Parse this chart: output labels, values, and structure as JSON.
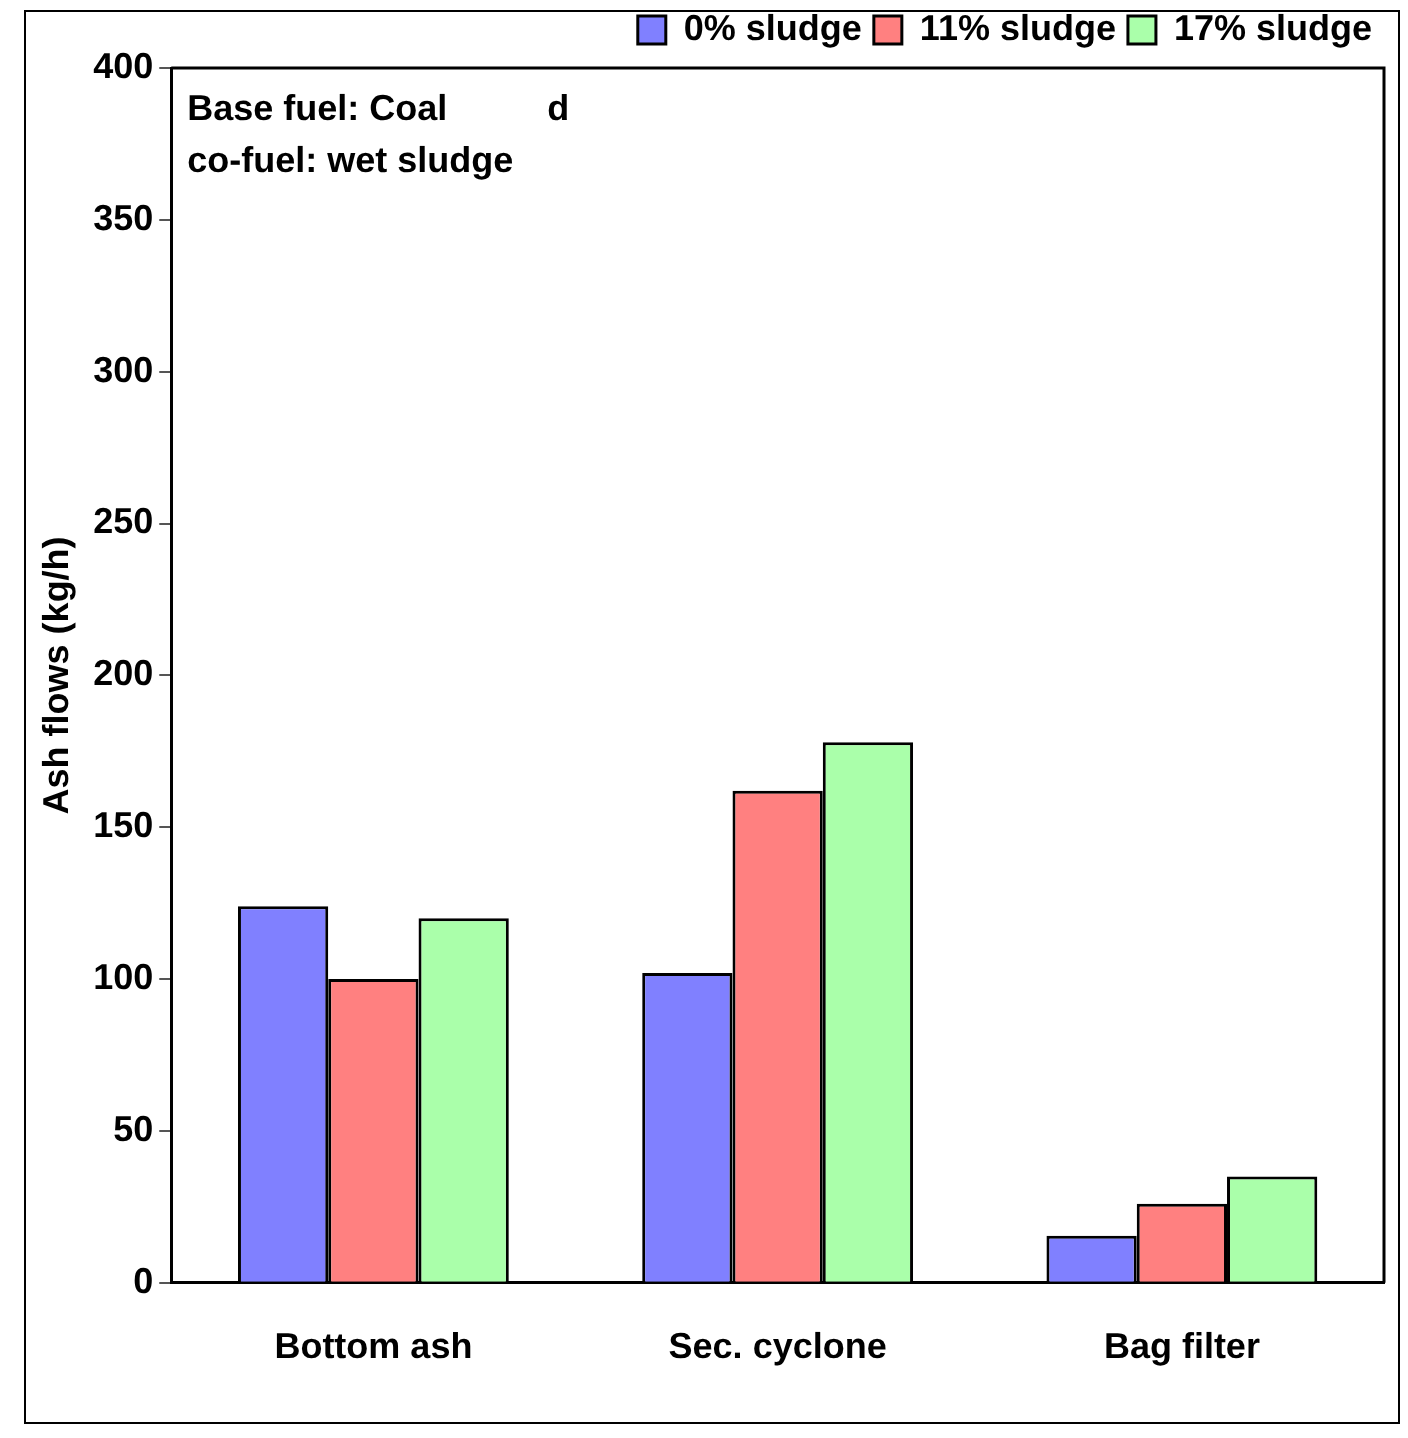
{
  "chart_data": {
    "type": "bar",
    "ylabel": "Ash flows (kg/h)",
    "categories": [
      "Bottom ash",
      "Sec. cyclone",
      "Bag filter"
    ],
    "series": [
      {
        "name": "0% sludge",
        "color": "#8080ff",
        "values": [
          124,
          102,
          15.5
        ]
      },
      {
        "name": "11% sludge",
        "color": "#ff8080",
        "values": [
          100,
          162,
          26
        ]
      },
      {
        "name": "17% sludge",
        "color": "#aaffaa",
        "values": [
          120,
          178,
          35
        ]
      }
    ],
    "ylim": [
      0,
      400
    ],
    "yticks": [
      0,
      50,
      100,
      150,
      200,
      250,
      300,
      350,
      400
    ],
    "grid": false,
    "legend": "top",
    "annotations": [
      "Base fuel: Coal          d",
      "co-fuel: wet sludge"
    ]
  }
}
